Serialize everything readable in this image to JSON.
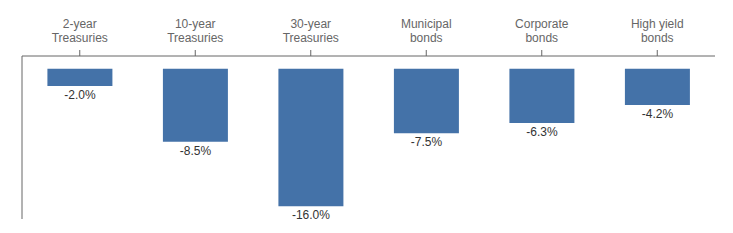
{
  "chart_data": {
    "type": "bar",
    "categories": [
      "2-year\nTreasuries",
      "10-year\nTreasuries",
      "30-year\nTreasuries",
      "Municipal\nbonds",
      "Corporate\nbonds",
      "High yield\nbonds"
    ],
    "values": [
      -2.0,
      -8.5,
      -16.0,
      -7.5,
      -6.3,
      -4.2
    ],
    "value_labels": [
      "-2.0%",
      "-8.5%",
      "-16.0%",
      "-7.5%",
      "-6.3%",
      "-4.2%"
    ],
    "data_labels": true,
    "color": "#4472A8",
    "ylim": [
      -17.5,
      1.5
    ],
    "tick_labels": "x"
  }
}
